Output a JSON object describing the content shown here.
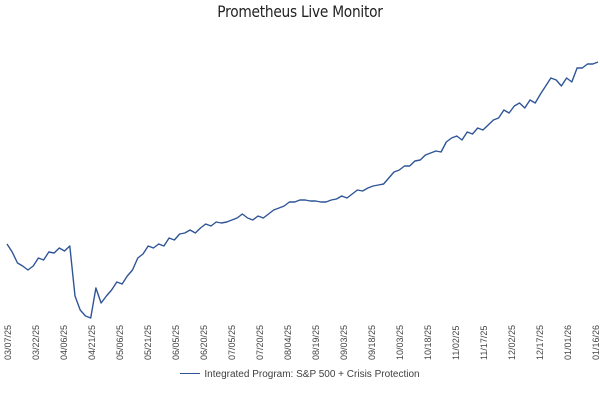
{
  "chart_data": {
    "type": "line",
    "title": "Prometheus Live Monitor",
    "xlabel": "",
    "ylabel": "",
    "grid": false,
    "legend_position": "bottom",
    "ylim": [
      0,
      260
    ],
    "line_color": "#2f5597",
    "tick_labels": [
      "03/07/25",
      "03/22/25",
      "04/06/25",
      "04/21/25",
      "05/06/25",
      "05/21/25",
      "06/05/25",
      "06/20/25",
      "07/05/25",
      "07/20/25",
      "08/04/25",
      "08/19/25",
      "09/03/25",
      "09/18/25",
      "10/03/25",
      "10/18/25",
      "11/02/25",
      "11/17/25",
      "12/02/25",
      "12/17/25",
      "01/01/26",
      "01/16/26"
    ],
    "series": [
      {
        "name": "Integrated Program: S&P 500 + Crisis Protection",
        "values": [
          74,
          66,
          55,
          52,
          48,
          52,
          60,
          58,
          66,
          65,
          70,
          67,
          72,
          22,
          8,
          2,
          0,
          30,
          15,
          22,
          28,
          36,
          34,
          42,
          48,
          60,
          64,
          72,
          70,
          74,
          72,
          80,
          78,
          84,
          85,
          88,
          85,
          90,
          94,
          92,
          96,
          95,
          96,
          98,
          100,
          104,
          100,
          98,
          102,
          100,
          104,
          108,
          110,
          112,
          116,
          116,
          118,
          118,
          117,
          117,
          116,
          116,
          118,
          119,
          122,
          120,
          124,
          128,
          127,
          130,
          132,
          133,
          134,
          140,
          146,
          148,
          152,
          152,
          157,
          158,
          163,
          165,
          167,
          166,
          176,
          180,
          182,
          178,
          186,
          184,
          190,
          188,
          193,
          198,
          200,
          208,
          205,
          212,
          215,
          210,
          218,
          215,
          224,
          232,
          240,
          238,
          232,
          240,
          236,
          250,
          250,
          254,
          254,
          256
        ]
      }
    ]
  }
}
